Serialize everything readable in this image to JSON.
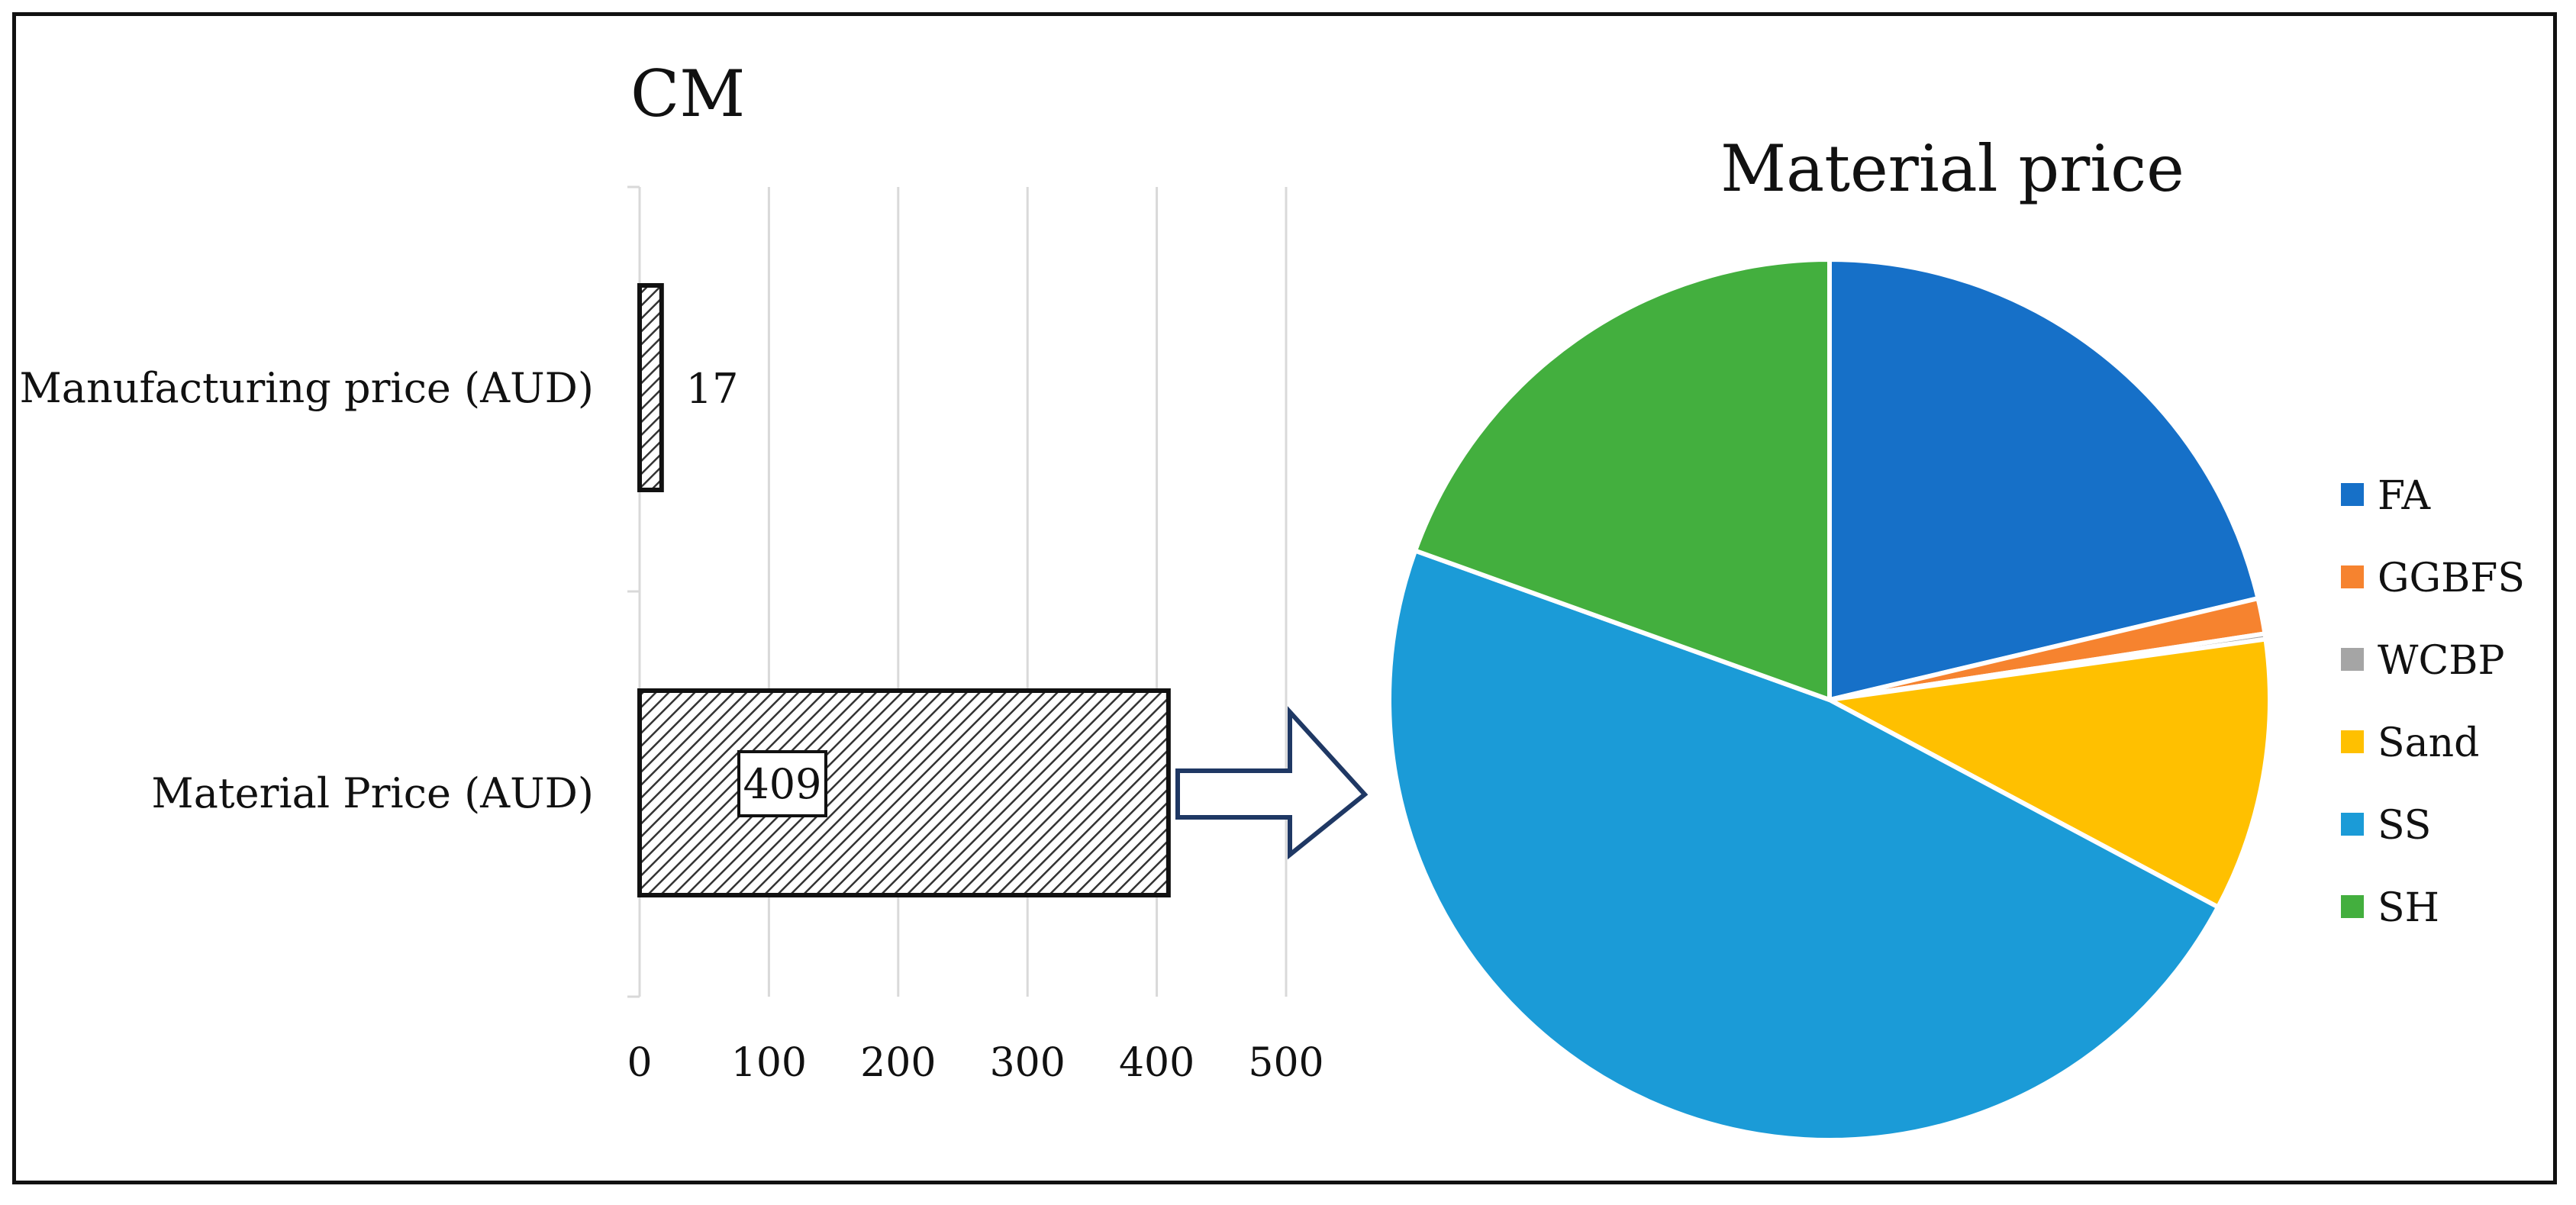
{
  "chart_data": [
    {
      "type": "bar",
      "orientation": "horizontal",
      "title": "CM",
      "categories": [
        "Manufacturing price (AUD)",
        "Material Price (AUD)"
      ],
      "values": [
        17,
        409
      ],
      "data_labels": [
        "17",
        "409"
      ],
      "xlim": [
        0,
        500
      ],
      "x_ticks": [
        "0",
        "100",
        "200",
        "300",
        "400",
        "500"
      ],
      "grid": true,
      "pattern": "hatched"
    },
    {
      "type": "pie",
      "title": "Material price",
      "labels": [
        "FA",
        "GGBFS",
        "WCBP",
        "Sand",
        "SS",
        "SH"
      ],
      "values": [
        21.3,
        1.3,
        0.2,
        10.0,
        47.7,
        19.5
      ],
      "colors": [
        "#1670C8",
        "#F6832F",
        "#A5A5A5",
        "#FFC000",
        "#1B9BD7",
        "#43AF3E"
      ],
      "legend": "right"
    }
  ]
}
